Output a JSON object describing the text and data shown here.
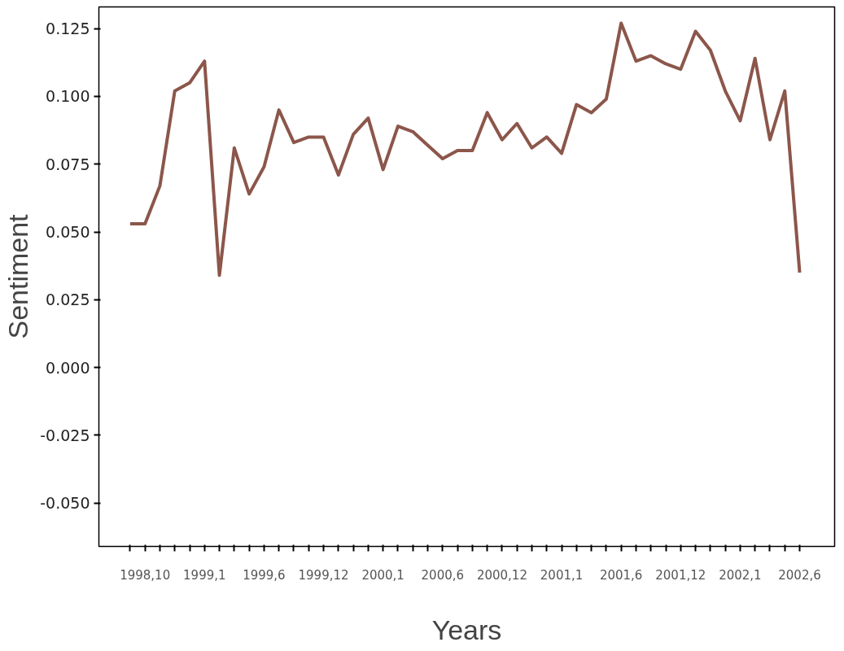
{
  "chart_data": {
    "type": "line",
    "xlabel": "Years",
    "ylabel": "Sentiment",
    "categories": [
      null,
      "1998,10",
      null,
      null,
      null,
      "1999,1",
      null,
      null,
      null,
      "1999,6",
      null,
      null,
      null,
      "1999,12",
      null,
      null,
      null,
      "2000,1",
      null,
      null,
      null,
      "2000,6",
      null,
      null,
      null,
      "2000,12",
      null,
      null,
      null,
      "2001,1",
      null,
      null,
      null,
      "2001,6",
      null,
      null,
      null,
      "2001,12",
      null,
      null,
      null,
      "2002,1",
      null,
      null,
      null,
      "2002,6"
    ],
    "series": [
      {
        "color": "#8c564b",
        "values": [
          0.053,
          0.053,
          0.067,
          0.102,
          0.105,
          0.113,
          0.034,
          0.081,
          0.064,
          0.074,
          0.095,
          0.083,
          0.085,
          0.085,
          0.071,
          0.086,
          0.092,
          0.073,
          0.089,
          0.087,
          0.082,
          0.077,
          0.08,
          0.08,
          0.094,
          0.084,
          0.09,
          0.081,
          0.085,
          0.079,
          0.097,
          0.094,
          0.099,
          0.127,
          0.113,
          0.115,
          0.112,
          0.11,
          0.124,
          0.117,
          0.102,
          0.091,
          0.114,
          0.084,
          0.102,
          0.035
        ]
      }
    ],
    "ylim": [
      -0.066,
      0.133
    ],
    "yticks": [
      {
        "value": -0.05,
        "label": "-0.050"
      },
      {
        "value": -0.025,
        "label": "-0.025"
      },
      {
        "value": 0,
        "label": "0.000"
      },
      {
        "value": 0.025,
        "label": "0.025"
      },
      {
        "value": 0.05,
        "label": "0.050"
      },
      {
        "value": 0.075,
        "label": "0.075"
      },
      {
        "value": 0.1,
        "label": "0.100"
      },
      {
        "value": 0.125,
        "label": "0.125"
      }
    ]
  }
}
